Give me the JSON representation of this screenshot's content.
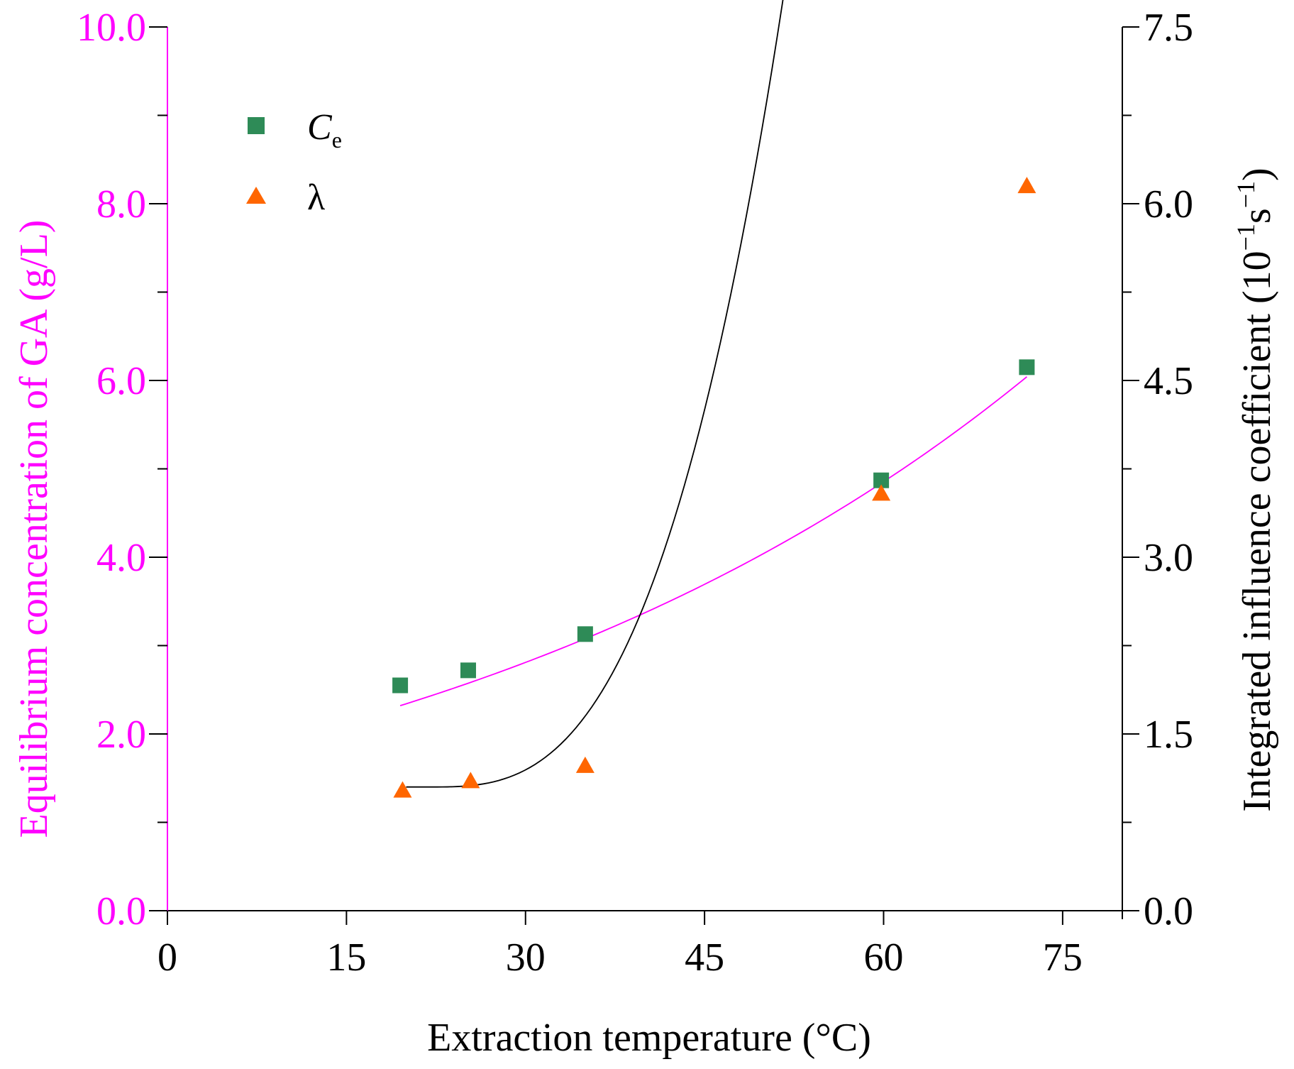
{
  "chart_data": {
    "type": "scatter",
    "title": "",
    "xlabel": "Extraction temperature (°C)",
    "ylabel_left": "Equilibrium concentration of  GA (g/L)",
    "ylabel_right": {
      "text": "Integrated influence coefficient (10",
      "exp1": "−1",
      "mid": "s",
      "exp2": "−1",
      "close": ")"
    },
    "xlim": [
      0,
      80
    ],
    "ylim_left": [
      0,
      10
    ],
    "ylim_right": [
      0,
      7.5
    ],
    "x_ticks": [
      0,
      15,
      30,
      45,
      60,
      75
    ],
    "x_tick_labels": [
      "0",
      "15",
      "30",
      "45",
      "60",
      "75"
    ],
    "y_left_ticks": [
      0,
      2,
      4,
      6,
      8,
      10
    ],
    "y_left_tick_labels": [
      "0.0",
      "2.0",
      "4.0",
      "6.0",
      "8.0",
      "10.0"
    ],
    "y_right_ticks": [
      0,
      1.5,
      3.0,
      4.5,
      6.0,
      7.5
    ],
    "y_right_tick_labels": [
      "0.0",
      "1.5",
      "3.0",
      "4.5",
      "6.0",
      "7.5"
    ],
    "legend_position": "top-left",
    "series": [
      {
        "name": "Ce",
        "label_main": "C",
        "label_sub": "e",
        "axis": "left",
        "marker": "square",
        "color": "#2e8b57",
        "fit_color": "#ff00ff",
        "x": [
          19.5,
          25.2,
          35.0,
          59.8,
          72.0
        ],
        "y": [
          2.55,
          2.72,
          3.13,
          4.87,
          6.15
        ],
        "fit": {
          "type": "exponential",
          "a": 1.626,
          "b": 0.01823,
          "x_range": [
            19.5,
            72.0
          ]
        }
      },
      {
        "name": "λ",
        "label_main": "λ",
        "label_sub": "",
        "axis": "right",
        "marker": "triangle",
        "color": "#ff6600",
        "fit_color": "#000000",
        "x": [
          19.7,
          25.4,
          35.0,
          59.8,
          72.0
        ],
        "y": [
          1.02,
          1.1,
          1.23,
          3.54,
          6.15
        ],
        "fit": {
          "type": "power-offset",
          "c": 1.05,
          "k": 0.0003276,
          "x0": 22.0,
          "p": 2.93,
          "x_range": [
            20.0,
            71.8
          ]
        }
      }
    ]
  }
}
